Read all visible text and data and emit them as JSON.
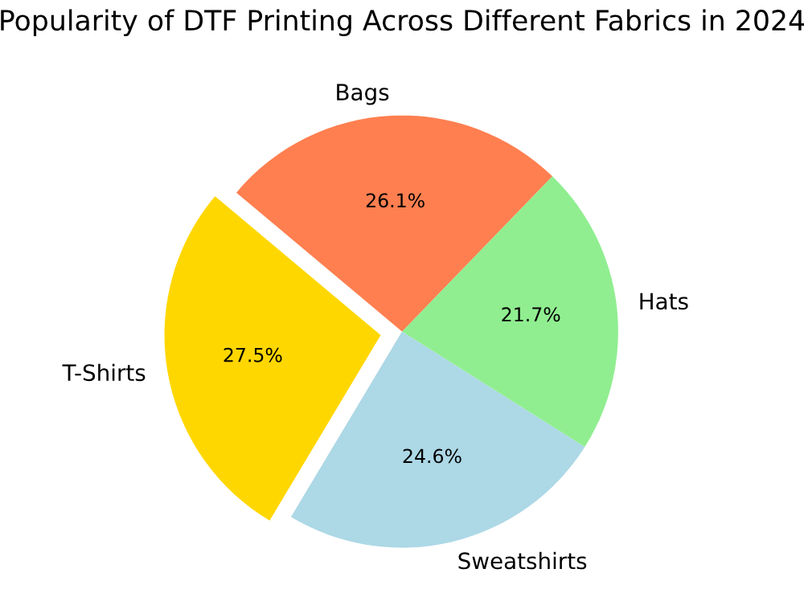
{
  "chart_data": {
    "type": "pie",
    "title": "Popularity of DTF Printing Across Different Fabrics in 2024",
    "categories": [
      "T-Shirts",
      "Sweatshirts",
      "Hats",
      "Bags"
    ],
    "values": [
      27.5,
      24.6,
      21.7,
      26.1
    ],
    "colors": [
      "#ffd700",
      "#add8e6",
      "#90ee90",
      "#ff7f50"
    ],
    "value_labels": [
      "27.5%",
      "24.6%",
      "21.7%",
      "26.1%"
    ]
  }
}
